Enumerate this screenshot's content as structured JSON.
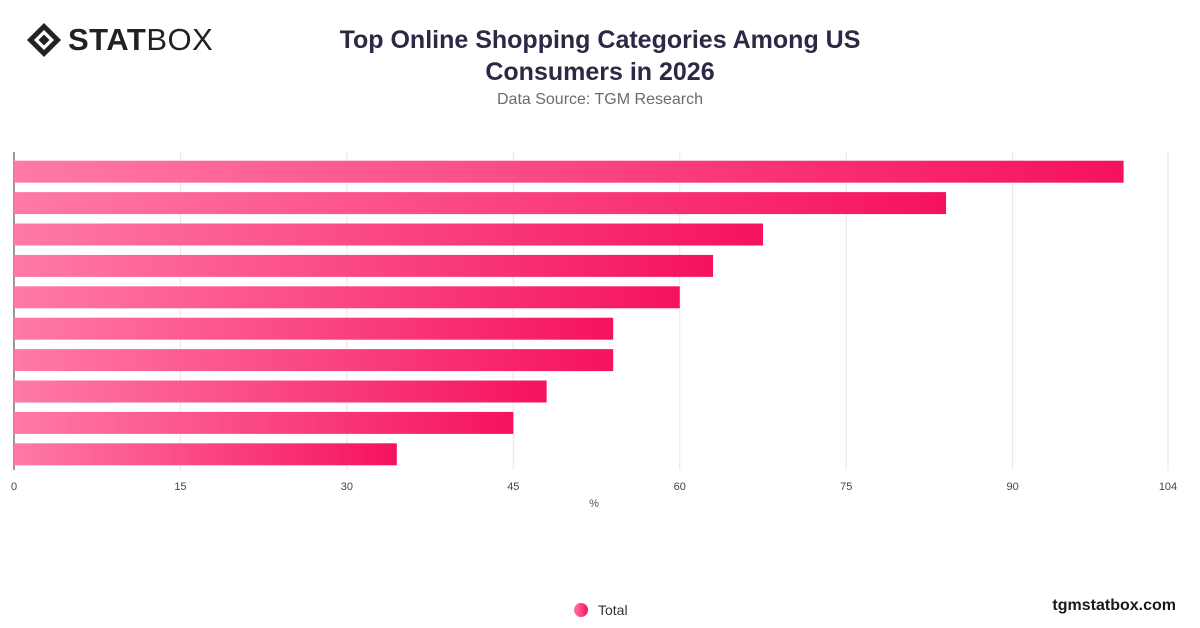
{
  "brand": {
    "bold": "STAT",
    "light": "BOX"
  },
  "title_lines": [
    "Top Online Shopping Categories Among US",
    "Consumers in 2026"
  ],
  "subtitle": "Data Source: TGM Research",
  "footer": {
    "site": "tgmstatbox.com"
  },
  "colors": {
    "bar_start": "#ff7aa5",
    "bar_end": "#f5125f",
    "grid": "#e6e6e6",
    "axis": "#333333"
  },
  "chart_data": {
    "type": "bar",
    "orientation": "horizontal",
    "xlabel": "%",
    "xlim": [
      0,
      104
    ],
    "ticks": [
      0,
      15,
      30,
      45,
      60,
      75,
      90,
      104
    ],
    "grid": true,
    "legend": "bottom-center",
    "series": [
      {
        "name": "Total",
        "values": [
          100,
          84,
          67.5,
          63,
          60,
          54,
          54,
          48,
          45,
          34.5
        ]
      }
    ]
  }
}
